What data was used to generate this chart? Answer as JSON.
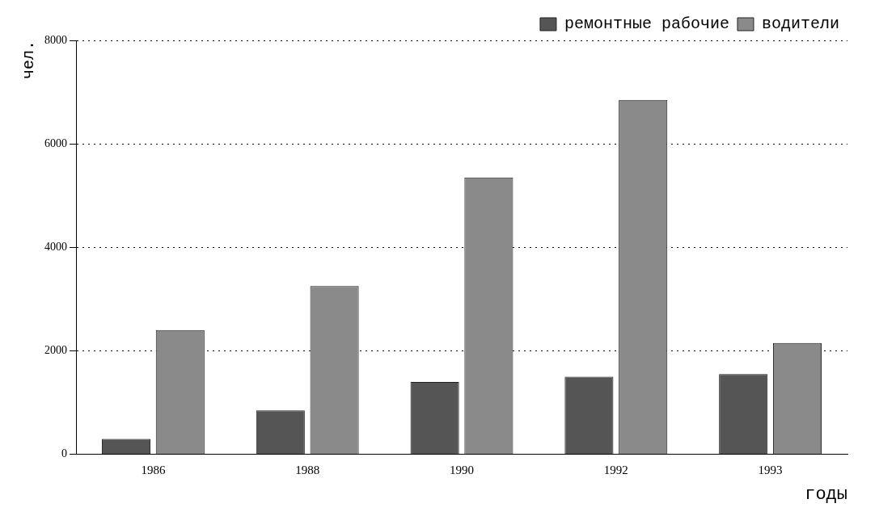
{
  "chart_data": {
    "type": "bar",
    "ylabel": "чел.",
    "xlabel": "годы",
    "categories": [
      "1986",
      "1988",
      "1990",
      "1992",
      "1993"
    ],
    "series": [
      {
        "name": "ремонтные рабочие",
        "color": "#555555",
        "values": [
          300,
          850,
          1400,
          1500,
          1550
        ]
      },
      {
        "name": "водители",
        "color": "#8a8a8a",
        "values": [
          2400,
          3250,
          5350,
          6850,
          2150
        ]
      }
    ],
    "ylim": [
      0,
      8000
    ],
    "yticks": [
      0,
      2000,
      4000,
      6000,
      8000
    ],
    "grid": "y",
    "legend": "top right"
  }
}
